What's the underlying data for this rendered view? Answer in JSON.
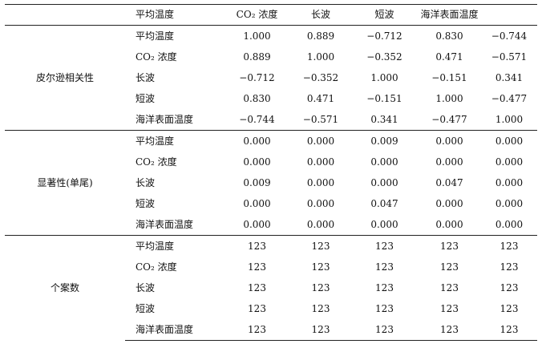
{
  "table": {
    "header": {
      "corner": "",
      "variable_col": "平均温度",
      "columns": [
        "CO₂ 浓度",
        "长波",
        "短波",
        "海洋表面温度",
        ""
      ]
    },
    "groups": [
      {
        "label": "皮尔逊相关性",
        "rows": [
          {
            "variable": "平均温度",
            "values": [
              "1.000",
              "0.889",
              "−0.712",
              "0.830",
              "−0.744"
            ]
          },
          {
            "variable": "CO₂ 浓度",
            "values": [
              "0.889",
              "1.000",
              "−0.352",
              "0.471",
              "−0.571"
            ]
          },
          {
            "variable": "长波",
            "values": [
              "−0.712",
              "−0.352",
              "1.000",
              "−0.151",
              "0.341"
            ]
          },
          {
            "variable": "短波",
            "values": [
              "0.830",
              "0.471",
              "−0.151",
              "1.000",
              "−0.477"
            ]
          },
          {
            "variable": "海洋表面温度",
            "values": [
              "−0.744",
              "−0.571",
              "0.341",
              "−0.477",
              "1.000"
            ]
          }
        ]
      },
      {
        "label": "显著性(单尾)",
        "rows": [
          {
            "variable": "平均温度",
            "values": [
              "0.000",
              "0.000",
              "0.009",
              "0.000",
              "0.000"
            ]
          },
          {
            "variable": "CO₂ 浓度",
            "values": [
              "0.000",
              "0.000",
              "0.000",
              "0.000",
              "0.000"
            ]
          },
          {
            "variable": "长波",
            "values": [
              "0.009",
              "0.000",
              "0.000",
              "0.047",
              "0.000"
            ]
          },
          {
            "variable": "短波",
            "values": [
              "0.000",
              "0.000",
              "0.047",
              "0.000",
              "0.000"
            ]
          },
          {
            "variable": "海洋表面温度",
            "values": [
              "0.000",
              "0.000",
              "0.000",
              "0.000",
              "0.000"
            ]
          }
        ]
      },
      {
        "label": "个案数",
        "rows": [
          {
            "variable": "平均温度",
            "values": [
              "123",
              "123",
              "123",
              "123",
              "123"
            ]
          },
          {
            "variable": "CO₂ 浓度",
            "values": [
              "123",
              "123",
              "123",
              "123",
              "123"
            ]
          },
          {
            "variable": "长波",
            "values": [
              "123",
              "123",
              "123",
              "123",
              "123"
            ]
          },
          {
            "variable": "短波",
            "values": [
              "123",
              "123",
              "123",
              "123",
              "123"
            ]
          },
          {
            "variable": "海洋表面温度",
            "values": [
              "123",
              "123",
              "123",
              "123",
              "123"
            ]
          }
        ]
      }
    ]
  }
}
